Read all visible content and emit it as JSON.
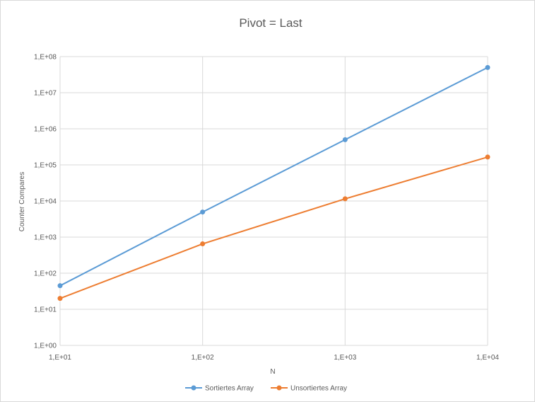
{
  "chart_data": {
    "type": "line",
    "title": "Pivot = Last",
    "xlabel": "N",
    "ylabel": "Counter Compares",
    "x_scale": "log",
    "y_scale": "log",
    "xlim": [
      10,
      10000
    ],
    "ylim": [
      1,
      100000000
    ],
    "x_ticks": [
      10,
      100,
      1000,
      10000
    ],
    "x_tick_labels": [
      "1,E+01",
      "1,E+02",
      "1,E+03",
      "1,E+04"
    ],
    "y_ticks": [
      1,
      10,
      100,
      1000,
      10000,
      100000,
      1000000,
      10000000,
      100000000
    ],
    "y_tick_labels": [
      "1,E+00",
      "1,E+01",
      "1,E+02",
      "1,E+03",
      "1,E+04",
      "1,E+05",
      "1,E+06",
      "1,E+07",
      "1,E+08"
    ],
    "grid": true,
    "legend_position": "bottom",
    "x": [
      10,
      100,
      1000,
      10000
    ],
    "series": [
      {
        "name": "Sortiertes Array",
        "values": [
          45,
          4950,
          499500,
          49995000
        ],
        "color": "#5b9bd5"
      },
      {
        "name": "Unsortiertes Array",
        "values": [
          20,
          650,
          11500,
          165000
        ],
        "color": "#ed7d31"
      }
    ]
  }
}
